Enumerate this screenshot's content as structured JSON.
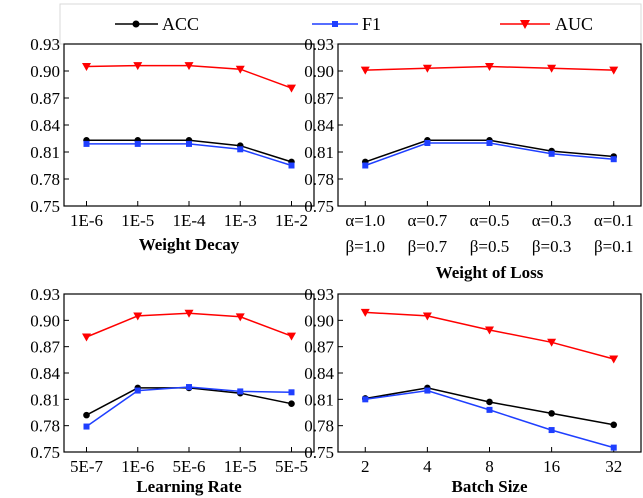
{
  "legend": [
    {
      "label": "ACC",
      "color": "#000000",
      "marker": "circle"
    },
    {
      "label": "F1",
      "color": "#1f3fff",
      "marker": "square"
    },
    {
      "label": "AUC",
      "color": "#ff0000",
      "marker": "triangle-down"
    }
  ],
  "chart_data": [
    {
      "type": "line",
      "xlabel": "Weight Decay",
      "categories": [
        "1E-6",
        "1E-5",
        "1E-4",
        "1E-3",
        "1E-2"
      ],
      "ylim": [
        0.75,
        0.93
      ],
      "yticks": [
        "0.75",
        "0.78",
        "0.81",
        "0.84",
        "0.87",
        "0.90",
        "0.93"
      ],
      "series": [
        {
          "name": "ACC",
          "values": [
            0.823,
            0.823,
            0.823,
            0.817,
            0.799
          ]
        },
        {
          "name": "F1",
          "values": [
            0.819,
            0.819,
            0.819,
            0.813,
            0.795
          ]
        },
        {
          "name": "AUC",
          "values": [
            0.905,
            0.906,
            0.906,
            0.902,
            0.881
          ]
        }
      ]
    },
    {
      "type": "line",
      "xlabel": "Weight of Loss",
      "categories": [
        "α=1.0",
        "α=0.7",
        "α=0.5",
        "α=0.3",
        "α=0.1"
      ],
      "categories2": [
        "β=1.0",
        "β=0.7",
        "β=0.5",
        "β=0.3",
        "β=0.1"
      ],
      "ylim": [
        0.75,
        0.93
      ],
      "yticks": [
        "0.75",
        "0.78",
        "0.81",
        "0.84",
        "0.87",
        "0.90",
        "0.93"
      ],
      "series": [
        {
          "name": "ACC",
          "values": [
            0.799,
            0.823,
            0.823,
            0.811,
            0.805
          ]
        },
        {
          "name": "F1",
          "values": [
            0.795,
            0.82,
            0.82,
            0.808,
            0.802
          ]
        },
        {
          "name": "AUC",
          "values": [
            0.901,
            0.903,
            0.905,
            0.903,
            0.901
          ]
        }
      ]
    },
    {
      "type": "line",
      "xlabel": "Learning Rate",
      "categories": [
        "5E-7",
        "1E-6",
        "5E-6",
        "1E-5",
        "5E-5"
      ],
      "ylim": [
        0.75,
        0.93
      ],
      "yticks": [
        "0.75",
        "0.78",
        "0.81",
        "0.84",
        "0.87",
        "0.90",
        "0.93"
      ],
      "series": [
        {
          "name": "ACC",
          "values": [
            0.792,
            0.823,
            0.823,
            0.817,
            0.805
          ]
        },
        {
          "name": "F1",
          "values": [
            0.779,
            0.82,
            0.824,
            0.819,
            0.818
          ]
        },
        {
          "name": "AUC",
          "values": [
            0.881,
            0.905,
            0.908,
            0.904,
            0.882
          ]
        }
      ]
    },
    {
      "type": "line",
      "xlabel": "Batch Size",
      "categories": [
        "2",
        "4",
        "8",
        "16",
        "32"
      ],
      "ylim": [
        0.75,
        0.93
      ],
      "yticks": [
        "0.75",
        "0.78",
        "0.81",
        "0.84",
        "0.87",
        "0.90",
        "0.93"
      ],
      "series": [
        {
          "name": "ACC",
          "values": [
            0.811,
            0.823,
            0.807,
            0.794,
            0.781
          ]
        },
        {
          "name": "F1",
          "values": [
            0.81,
            0.82,
            0.798,
            0.775,
            0.755
          ]
        },
        {
          "name": "AUC",
          "values": [
            0.909,
            0.905,
            0.889,
            0.875,
            0.856
          ]
        }
      ]
    }
  ]
}
